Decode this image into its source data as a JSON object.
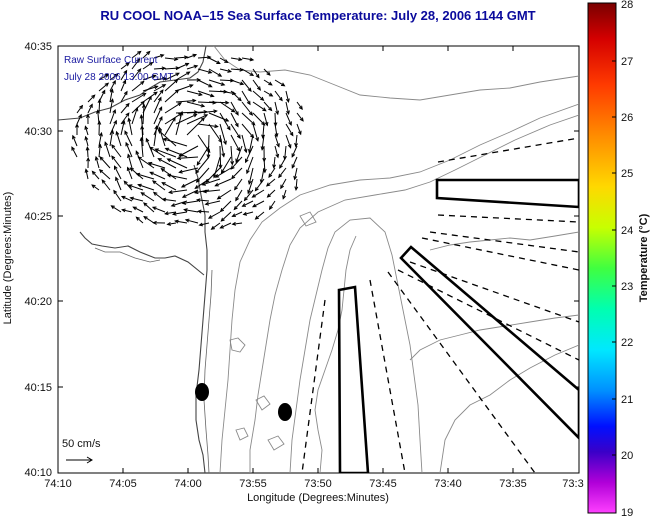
{
  "title": "RU COOL   NOAA–15  Sea Surface Temperature:  July 28, 2006 1144 GMT",
  "overlay": {
    "line1": "Raw Surface Current",
    "line2": "July 28 2006 13:00 GMT"
  },
  "scale_label": "50 cm/s",
  "axes": {
    "xlabel": "Longitude (Degrees:Minutes)",
    "ylabel": "Latitude (Degrees:Minutes)",
    "xticks": [
      "74:10",
      "74:05",
      "74:00",
      "73:55",
      "73:50",
      "73:45",
      "73:40",
      "73:35",
      "73:3"
    ],
    "yticks": [
      "40:35",
      "40:30",
      "40:25",
      "40:20",
      "40:15",
      "40:10"
    ]
  },
  "colorbar": {
    "label": "Temperature (°C)",
    "ticks": [
      "28",
      "27",
      "26",
      "25",
      "24",
      "23",
      "22",
      "21",
      "20",
      "19"
    ],
    "min": 19,
    "max": 28
  },
  "colors": {
    "title": "#0a0a9c",
    "overlay": "#1a1aa0"
  }
}
